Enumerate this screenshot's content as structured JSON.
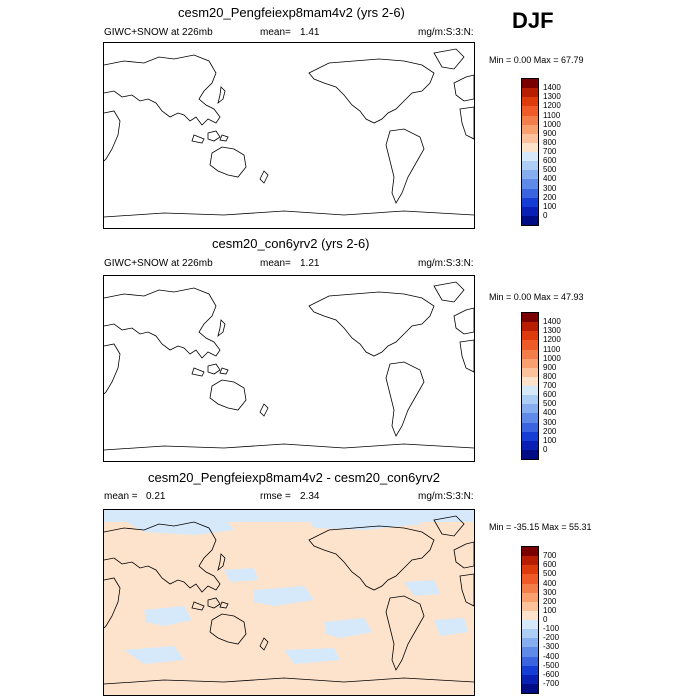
{
  "season": "DJF",
  "colors": {
    "light_blue": "#d6e9fb",
    "light_orange": "#fde3cc"
  },
  "panels": [
    {
      "title": "cesm20_Pengfeiexp8mam4v2 (yrs 2-6)",
      "left_label": "GIWC+SNOW at 226mb",
      "mean_label": "mean=",
      "mean_value": "1.41",
      "units": "mg/m:S:3:N:",
      "minmax": "Min =   0.00 Max =  67.79",
      "colorbar_labels": [
        "1400",
        "1300",
        "1200",
        "1100",
        "1000",
        "900",
        "800",
        "700",
        "600",
        "500",
        "400",
        "300",
        "200",
        "100",
        "0"
      ],
      "colorbar_colors": [
        "#7a0000",
        "#b71d00",
        "#de3b0c",
        "#ee5a28",
        "#f47e4a",
        "#f8a06f",
        "#fbc29b",
        "#fde3cc",
        "#d6e9fb",
        "#aecdf4",
        "#86adee",
        "#5f8ae8",
        "#3a64e0",
        "#173ed4",
        "#0a1fb3",
        "#000c84"
      ],
      "shaded": false
    },
    {
      "title": "cesm20_con6yrv2 (yrs 2-6)",
      "left_label": "GIWC+SNOW at 226mb",
      "mean_label": "mean=",
      "mean_value": "1.21",
      "units": "mg/m:S:3:N:",
      "minmax": "Min =   0.00 Max =  47.93",
      "colorbar_labels": [
        "1400",
        "1300",
        "1200",
        "1100",
        "1000",
        "900",
        "800",
        "700",
        "600",
        "500",
        "400",
        "300",
        "200",
        "100",
        "0"
      ],
      "colorbar_colors": [
        "#7a0000",
        "#b71d00",
        "#de3b0c",
        "#ee5a28",
        "#f47e4a",
        "#f8a06f",
        "#fbc29b",
        "#fde3cc",
        "#d6e9fb",
        "#aecdf4",
        "#86adee",
        "#5f8ae8",
        "#3a64e0",
        "#173ed4",
        "#0a1fb3",
        "#000c84"
      ],
      "shaded": false
    },
    {
      "title": "cesm20_Pengfeiexp8mam4v2 - cesm20_con6yrv2",
      "left_label": "",
      "mean_label": "mean =",
      "mean_value": "0.21",
      "rmse_label": "rmse =",
      "rmse_value": "2.34",
      "units": "mg/m:S:3:N:",
      "minmax": "Min = -35.15 Max =  55.31",
      "colorbar_labels": [
        "700",
        "600",
        "500",
        "400",
        "300",
        "200",
        "100",
        "0",
        "-100",
        "-200",
        "-300",
        "-400",
        "-500",
        "-600",
        "-700"
      ],
      "colorbar_colors": [
        "#7a0000",
        "#b71d00",
        "#de3b0c",
        "#ee5a28",
        "#f47e4a",
        "#f8a06f",
        "#fbc29b",
        "#fde3cc",
        "#d6e9fb",
        "#aecdf4",
        "#86adee",
        "#5f8ae8",
        "#3a64e0",
        "#173ed4",
        "#0a1fb3",
        "#000c84"
      ],
      "shaded": true
    }
  ]
}
